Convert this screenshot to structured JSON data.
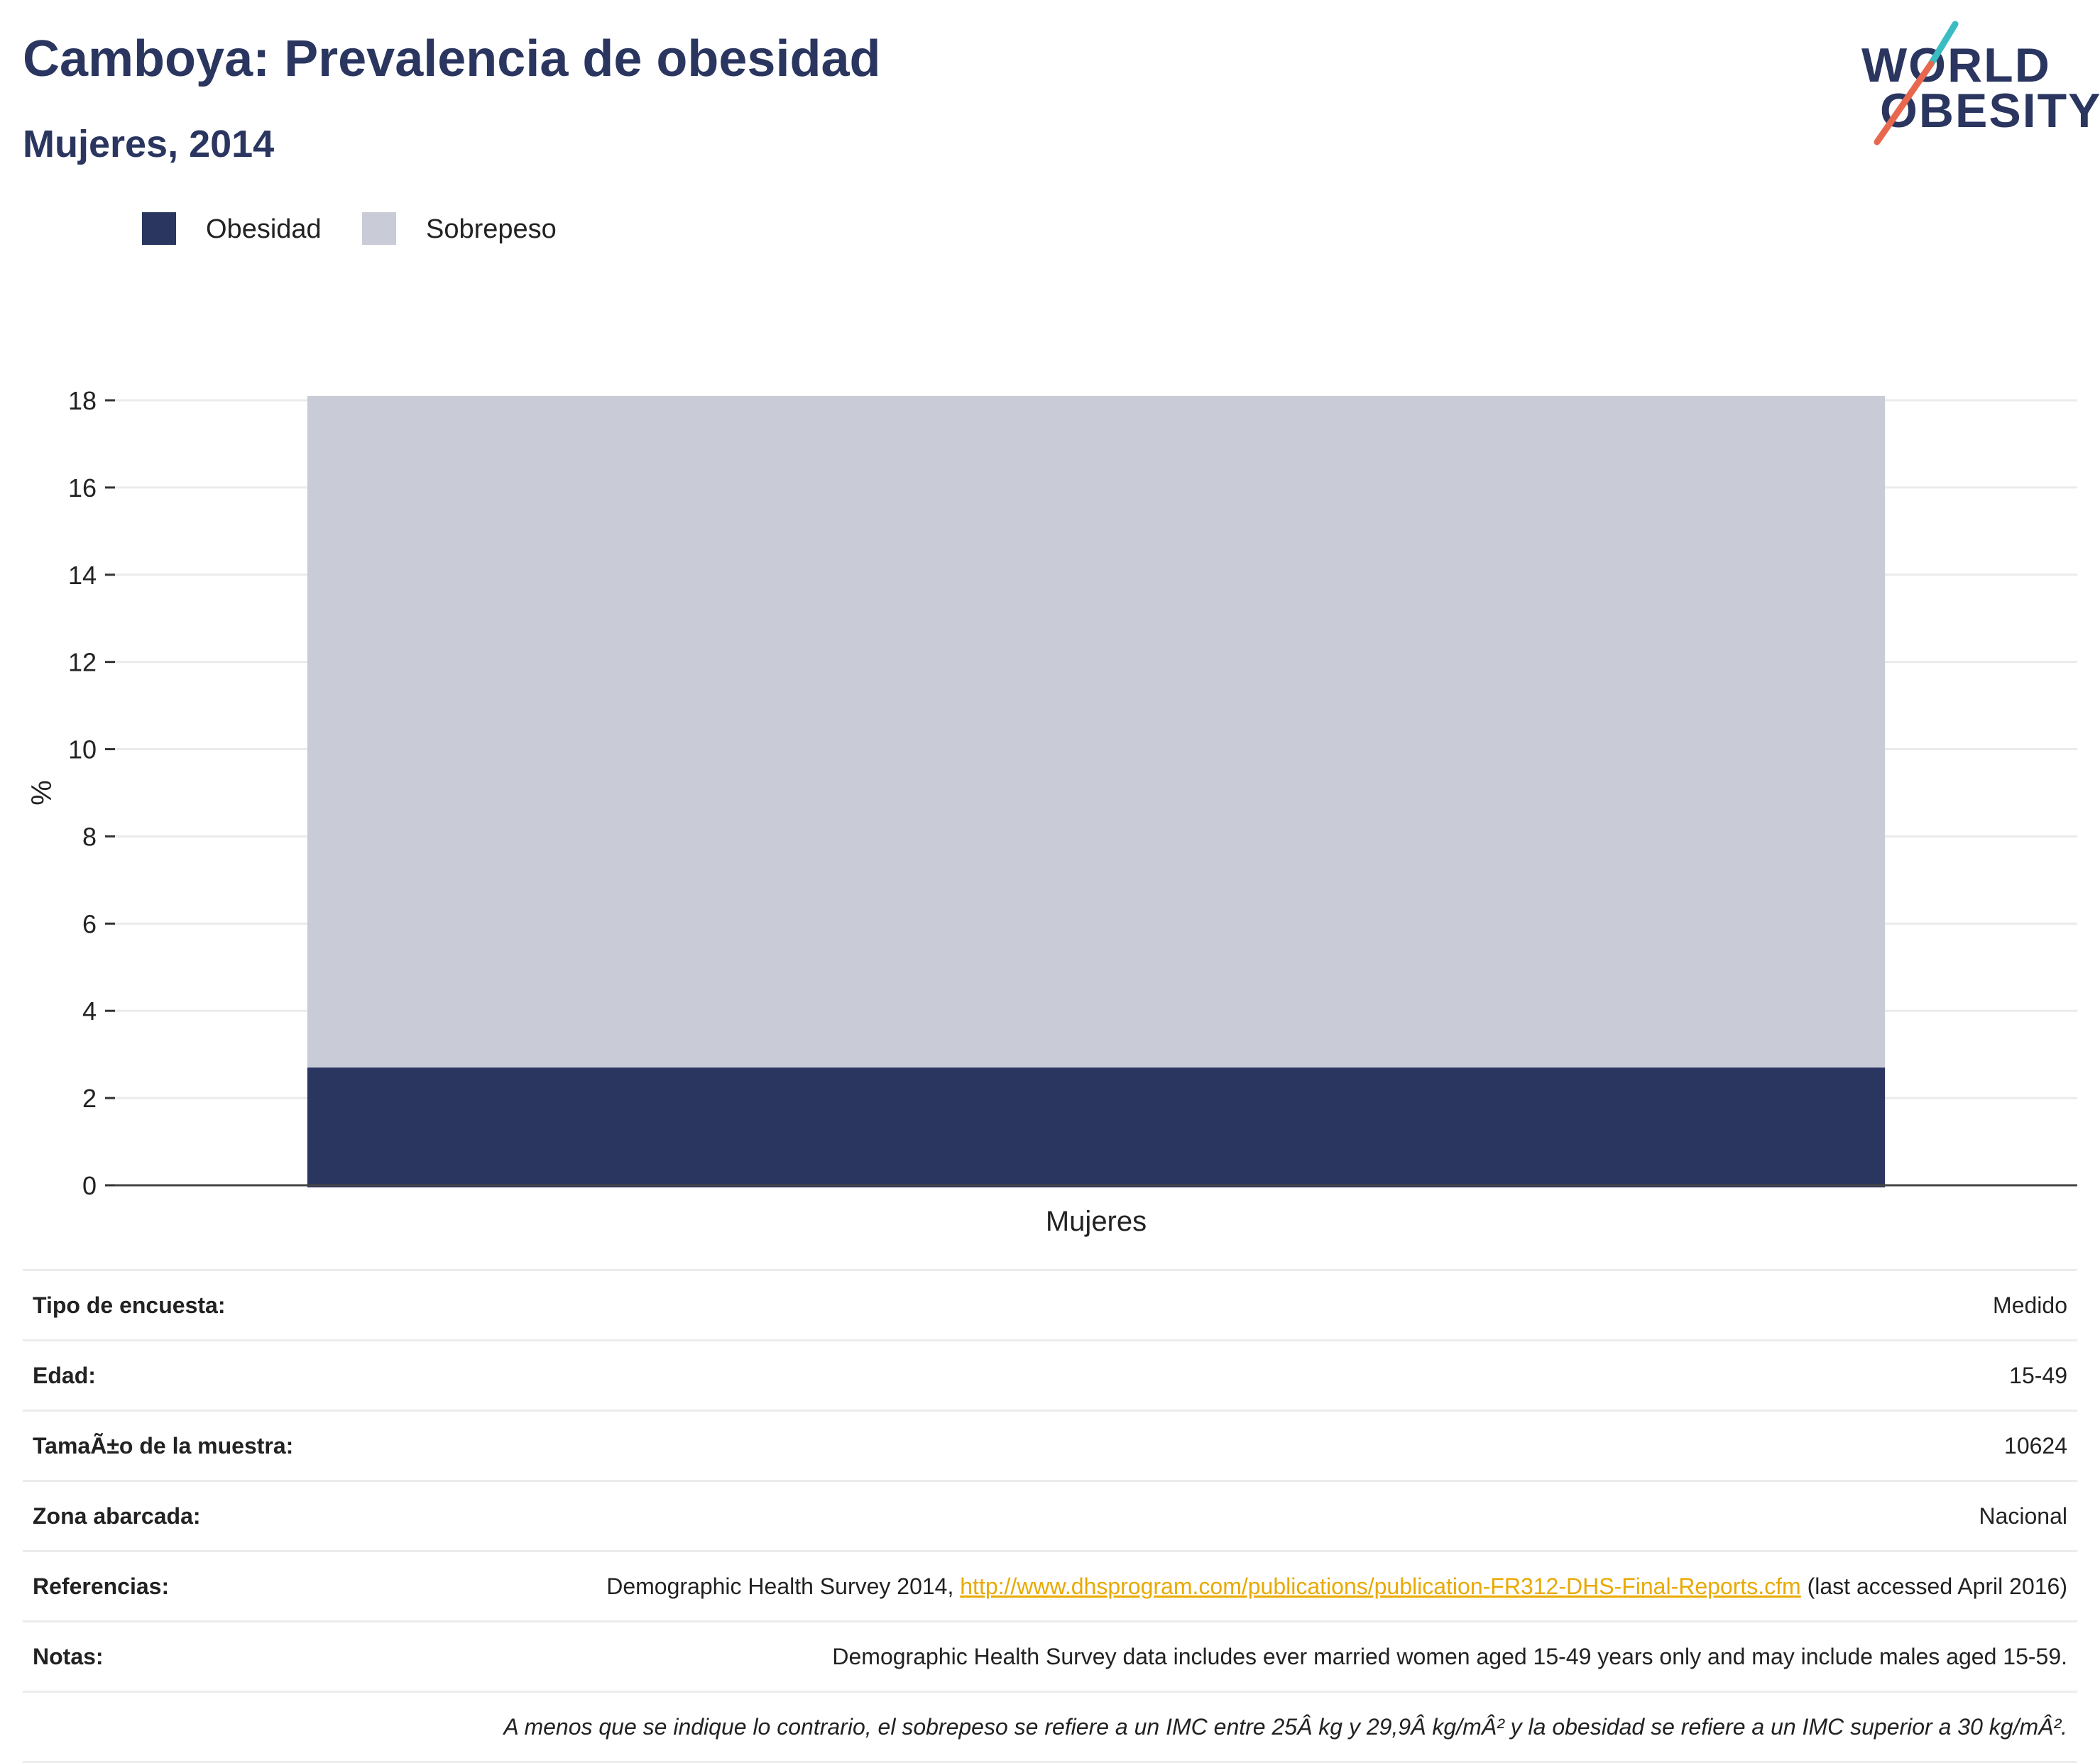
{
  "header": {
    "title": "Camboya: Prevalencia de obesidad",
    "subtitle": "Mujeres, 2014"
  },
  "logo": {
    "line1": "WORLD",
    "line2": "OBESITY"
  },
  "legend": [
    {
      "label": "Obesidad",
      "color": "#2a365f"
    },
    {
      "label": "Sobrepeso",
      "color": "#c9ccd7"
    }
  ],
  "chart_data": {
    "type": "bar",
    "stacked": true,
    "categories": [
      "Mujeres"
    ],
    "series": [
      {
        "name": "Obesidad",
        "values": [
          2.7
        ],
        "color": "#2a365f"
      },
      {
        "name": "Sobrepeso",
        "values": [
          15.4
        ],
        "color": "#c9ccd7"
      }
    ],
    "ylabel": "%",
    "xlabel": "",
    "ylim": [
      0,
      18
    ],
    "yticks": [
      0,
      2,
      4,
      6,
      8,
      10,
      12,
      14,
      16,
      18
    ],
    "grid": true,
    "legend_position": "top-left"
  },
  "info": {
    "survey_type": {
      "label": "Tipo de encuesta:",
      "value": "Medido"
    },
    "age": {
      "label": "Edad:",
      "value": "15-49"
    },
    "sample_size": {
      "label": "TamaÃ±o de la muestra:",
      "value": "10624"
    },
    "area": {
      "label": "Zona abarcada:",
      "value": "Nacional"
    },
    "references": {
      "label": "Referencias:",
      "prefix": "Demographic Health Survey 2014, ",
      "link": "http://www.dhsprogram.com/publications/publication-FR312-DHS-Final-Reports.cfm",
      "suffix": " (last accessed April 2016)"
    },
    "notes": {
      "label": "Notas:",
      "value": "Demographic Health Survey data includes ever married women aged 15-49 years only and may include males aged 15-59."
    },
    "footnote": "A menos que se indique lo contrario, el sobrepeso se refiere a un IMC entre 25Â kg y 29,9Â kg/mÂ² y la obesidad se refiere a un IMC superior a 30 kg/mÂ²."
  }
}
